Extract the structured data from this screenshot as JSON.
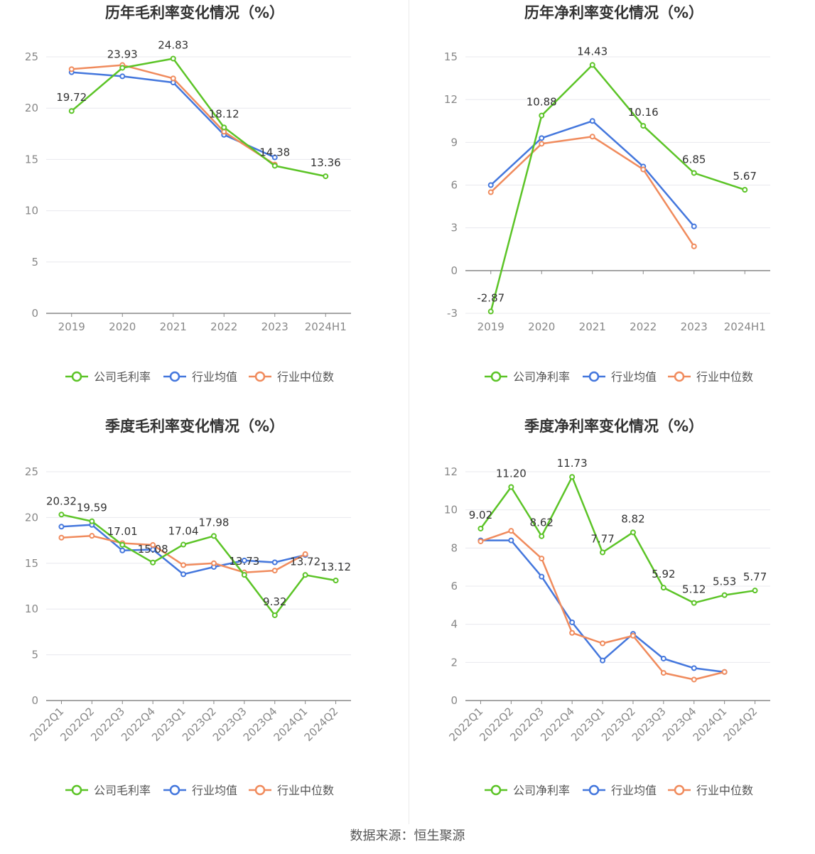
{
  "colors": {
    "company": "#5cc427",
    "avg": "#4477dd",
    "median": "#f08b5d",
    "grid": "#e8e8ee",
    "axis": "#888888"
  },
  "legend": {
    "avg": "行业均值",
    "median": "行业中位数"
  },
  "source": "数据来源：恒生聚源",
  "chart_data": [
    {
      "type": "line",
      "title": "历年毛利率变化情况（%）",
      "categories": [
        "2019",
        "2020",
        "2021",
        "2022",
        "2023",
        "2024H1"
      ],
      "ylim": [
        0,
        25
      ],
      "yticks": [
        0,
        5,
        10,
        15,
        20,
        25
      ],
      "series": [
        {
          "name": "公司毛利率",
          "key": "company",
          "values": [
            19.72,
            23.93,
            24.83,
            18.12,
            14.38,
            13.36
          ],
          "labels": [
            "19.72",
            "23.93",
            "24.83",
            "18.12",
            "14.38",
            "13.36"
          ]
        },
        {
          "name": "行业均值",
          "key": "avg",
          "values": [
            23.5,
            23.1,
            22.5,
            17.4,
            15.2,
            null
          ]
        },
        {
          "name": "行业中位数",
          "key": "median",
          "values": [
            23.8,
            24.2,
            22.9,
            17.7,
            14.5,
            null
          ]
        }
      ]
    },
    {
      "type": "line",
      "title": "历年净利率变化情况（%）",
      "categories": [
        "2019",
        "2020",
        "2021",
        "2022",
        "2023",
        "2024H1"
      ],
      "ylim": [
        -3,
        15
      ],
      "yticks": [
        -3,
        0,
        3,
        6,
        9,
        12,
        15
      ],
      "series": [
        {
          "name": "公司净利率",
          "key": "company",
          "values": [
            -2.87,
            10.88,
            14.43,
            10.16,
            6.85,
            5.67
          ],
          "labels": [
            "-2.87",
            "10.88",
            "14.43",
            "10.16",
            "6.85",
            "5.67"
          ]
        },
        {
          "name": "行业均值",
          "key": "avg",
          "values": [
            6.0,
            9.3,
            10.5,
            7.3,
            3.1,
            null
          ]
        },
        {
          "name": "行业中位数",
          "key": "median",
          "values": [
            5.5,
            8.9,
            9.4,
            7.1,
            1.7,
            null
          ]
        }
      ]
    },
    {
      "type": "line",
      "title": "季度毛利率变化情况（%）",
      "categories": [
        "2022Q1",
        "2022Q2",
        "2022Q3",
        "2022Q4",
        "2023Q1",
        "2023Q2",
        "2023Q3",
        "2023Q4",
        "2024Q1",
        "2024Q2"
      ],
      "ylim": [
        0,
        25
      ],
      "yticks": [
        0,
        5,
        10,
        15,
        20,
        25
      ],
      "series": [
        {
          "name": "公司毛利率",
          "key": "company",
          "values": [
            20.32,
            19.59,
            17.01,
            15.08,
            17.04,
            17.98,
            13.73,
            9.32,
            13.72,
            13.12
          ],
          "labels": [
            "20.32",
            "19.59",
            "17.01",
            "15.08",
            "17.04",
            "17.98",
            "13.73",
            "9.32",
            "13.72",
            "13.12"
          ]
        },
        {
          "name": "行业均值",
          "key": "avg",
          "values": [
            19.0,
            19.2,
            16.4,
            16.5,
            13.8,
            14.6,
            15.3,
            15.1,
            15.9,
            null
          ]
        },
        {
          "name": "行业中位数",
          "key": "median",
          "values": [
            17.8,
            18.0,
            17.2,
            17.0,
            14.8,
            15.0,
            14.0,
            14.2,
            16.0,
            null
          ]
        }
      ]
    },
    {
      "type": "line",
      "title": "季度净利率变化情况（%）",
      "categories": [
        "2022Q1",
        "2022Q2",
        "2022Q3",
        "2022Q4",
        "2023Q1",
        "2023Q2",
        "2023Q3",
        "2023Q4",
        "2024Q1",
        "2024Q2"
      ],
      "ylim": [
        0,
        12
      ],
      "yticks": [
        0,
        2,
        4,
        6,
        8,
        10,
        12
      ],
      "series": [
        {
          "name": "公司净利率",
          "key": "company",
          "values": [
            9.02,
            11.2,
            8.62,
            11.73,
            7.77,
            8.82,
            5.92,
            5.12,
            5.53,
            5.77
          ],
          "labels": [
            "9.02",
            "11.20",
            "8.62",
            "11.73",
            "7.77",
            "8.82",
            "5.92",
            "5.12",
            "5.53",
            "5.77"
          ]
        },
        {
          "name": "行业均值",
          "key": "avg",
          "values": [
            8.4,
            8.4,
            6.5,
            4.1,
            2.1,
            3.5,
            2.2,
            1.7,
            1.5,
            null
          ]
        },
        {
          "name": "行业中位数",
          "key": "median",
          "values": [
            8.35,
            8.9,
            7.45,
            3.55,
            3.0,
            3.4,
            1.45,
            1.1,
            1.5,
            null
          ]
        }
      ]
    }
  ]
}
